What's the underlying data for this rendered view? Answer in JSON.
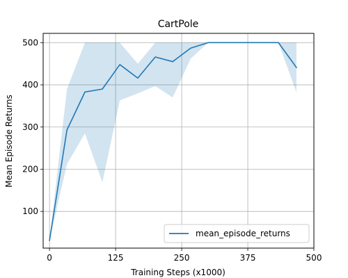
{
  "chart_data": {
    "type": "line",
    "title": "CartPole",
    "xlabel": "Training Steps (x1000)",
    "ylabel": "Mean Episode Returns",
    "xlim": [
      -12,
      500
    ],
    "ylim": [
      13,
      522
    ],
    "xticks": [
      0,
      125,
      250,
      375,
      500
    ],
    "yticks": [
      100,
      200,
      300,
      400,
      500
    ],
    "grid": true,
    "legend_position": "lower right",
    "colors": {
      "line": "#1f77b4",
      "band": "#1f77b4"
    },
    "series": [
      {
        "name": "mean_episode_returns",
        "x": [
          0,
          33,
          67,
          100,
          133,
          167,
          200,
          233,
          267,
          300,
          333,
          367,
          400,
          433,
          467
        ],
        "y": [
          31,
          293,
          383,
          390,
          448,
          416,
          466,
          455,
          487,
          500,
          500,
          500,
          500,
          500,
          441
        ],
        "lower": [
          31,
          212,
          285,
          169,
          363,
          380,
          397,
          370,
          462,
          500,
          500,
          500,
          500,
          500,
          382
        ],
        "upper": [
          31,
          390,
          500,
          500,
          500,
          450,
          500,
          500,
          500,
          500,
          500,
          500,
          500,
          500,
          500
        ]
      }
    ]
  }
}
